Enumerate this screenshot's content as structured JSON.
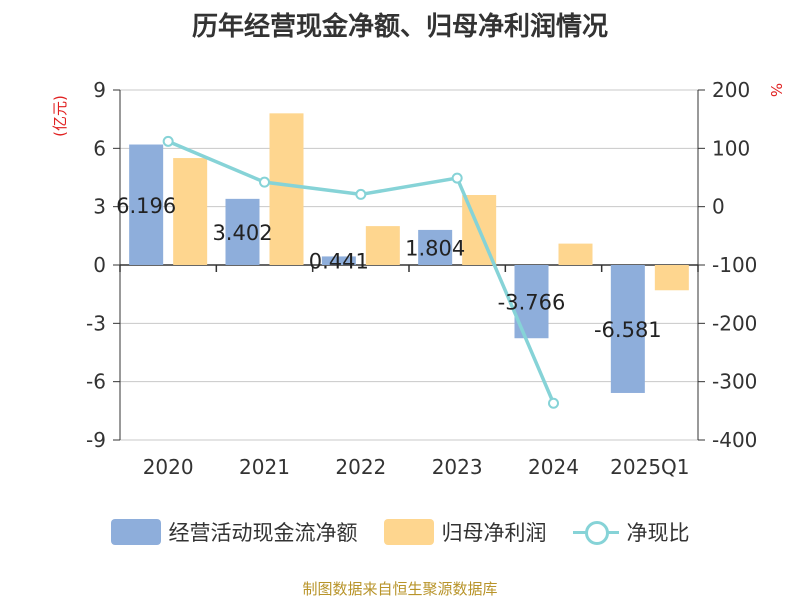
{
  "chart_data": {
    "type": "bar",
    "title": "历年经营现金净额、归母净利润情况",
    "categories": [
      "2020",
      "2021",
      "2022",
      "2023",
      "2024",
      "2025Q1"
    ],
    "left_axis": {
      "unit": "(亿元)",
      "min": -9,
      "max": 9,
      "ticks": [
        9,
        6,
        3,
        0,
        -3,
        -6,
        -9
      ]
    },
    "right_axis": {
      "unit": "%",
      "min": -400,
      "max": 200,
      "ticks": [
        200,
        100,
        0,
        -100,
        -200,
        -300,
        -400
      ]
    },
    "series": [
      {
        "name": "经营活动现金流净额",
        "type": "bar",
        "axis": "left",
        "color": "#8eaedb",
        "values": [
          6.196,
          3.402,
          0.441,
          1.804,
          -3.766,
          -6.581
        ],
        "labels": [
          "6.196",
          "3.402",
          "0.441",
          "1.804",
          "-3.766",
          "-6.581"
        ]
      },
      {
        "name": "归母净利润",
        "type": "bar",
        "axis": "left",
        "color": "#fed68f",
        "values": [
          5.5,
          7.8,
          2.0,
          3.6,
          1.1,
          -1.3
        ]
      },
      {
        "name": "净现比",
        "type": "line",
        "axis": "right",
        "color": "#86d3d7",
        "values": [
          112,
          42,
          21,
          49,
          -337,
          null
        ]
      }
    ],
    "grid": true,
    "legend_position": "bottom"
  },
  "source": "制图数据来自恒生聚源数据库"
}
